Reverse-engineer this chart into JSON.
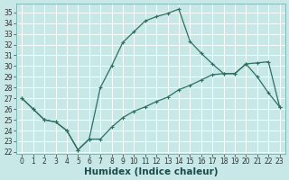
{
  "xlabel": "Humidex (Indice chaleur)",
  "bg_color": "#c8e8e8",
  "grid_color": "#b0d8d8",
  "line_color": "#2d7060",
  "xlim": [
    -0.5,
    23.5
  ],
  "ylim": [
    21.8,
    35.8
  ],
  "yticks": [
    22,
    23,
    24,
    25,
    26,
    27,
    28,
    29,
    30,
    31,
    32,
    33,
    34,
    35
  ],
  "xticks": [
    0,
    1,
    2,
    3,
    4,
    5,
    6,
    7,
    8,
    9,
    10,
    11,
    12,
    13,
    14,
    15,
    16,
    17,
    18,
    19,
    20,
    21,
    22,
    23
  ],
  "line_upper_x": [
    0,
    1,
    2,
    3,
    4,
    5,
    6,
    7,
    8,
    9,
    10,
    11,
    12,
    13,
    14,
    15,
    16,
    17,
    18,
    19,
    20,
    21,
    22,
    23
  ],
  "line_upper_y": [
    27.0,
    26.0,
    25.0,
    24.8,
    24.0,
    22.2,
    23.2,
    28.0,
    30.0,
    32.2,
    33.2,
    34.2,
    34.6,
    34.9,
    35.3,
    32.3,
    31.2,
    30.2,
    29.3,
    29.3,
    30.2,
    29.0,
    27.5,
    26.2
  ],
  "line_lower_x": [
    0,
    1,
    2,
    3,
    4,
    5,
    6,
    7,
    8,
    9,
    10,
    11,
    12,
    13,
    14,
    15,
    16,
    17,
    18,
    19,
    20,
    21,
    22,
    23
  ],
  "line_lower_y": [
    27.0,
    26.0,
    25.0,
    24.8,
    24.0,
    22.2,
    23.2,
    23.2,
    24.3,
    25.2,
    25.8,
    26.2,
    26.7,
    27.1,
    27.8,
    28.2,
    28.7,
    29.2,
    29.3,
    29.3,
    30.2,
    30.3,
    30.4,
    26.2
  ],
  "marker_size": 3,
  "line_width": 0.9,
  "tick_fontsize": 5.5,
  "label_fontsize": 7.5,
  "fig_w": 3.2,
  "fig_h": 2.0,
  "dpi": 100
}
